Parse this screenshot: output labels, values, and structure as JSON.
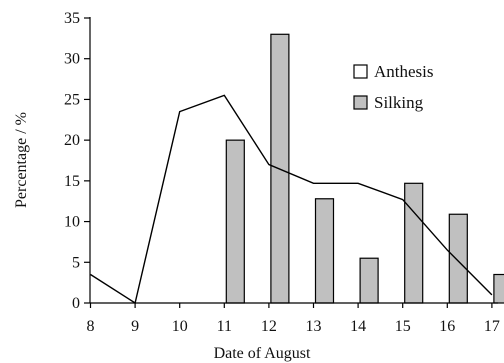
{
  "chart_data": {
    "type": "bar+line",
    "xlabel": "Date of August",
    "ylabel": "Percentage / %",
    "categories": [
      "8",
      "9",
      "10",
      "11",
      "12",
      "13",
      "14",
      "15",
      "16",
      "17"
    ],
    "ylim": [
      0,
      35
    ],
    "yticks": [
      "0",
      "5",
      "10",
      "15",
      "20",
      "25",
      "30",
      "35"
    ],
    "grid": false,
    "legend_position": "top-right",
    "series": [
      {
        "name": "Anthesis",
        "kind": "line",
        "color": "#000000",
        "values": [
          3.5,
          0,
          23.5,
          25.5,
          17,
          14.7,
          14.7,
          12.7,
          6.5,
          1
        ]
      },
      {
        "name": "Silking",
        "kind": "bar",
        "color": "#c0c0c0",
        "values": [
          null,
          null,
          null,
          20,
          33,
          12.8,
          5.5,
          14.7,
          10.9,
          3.5
        ]
      }
    ],
    "legend": [
      {
        "label": "Anthesis",
        "swatch": "#ffffff"
      },
      {
        "label": "Silking",
        "swatch": "#c0c0c0"
      }
    ]
  }
}
